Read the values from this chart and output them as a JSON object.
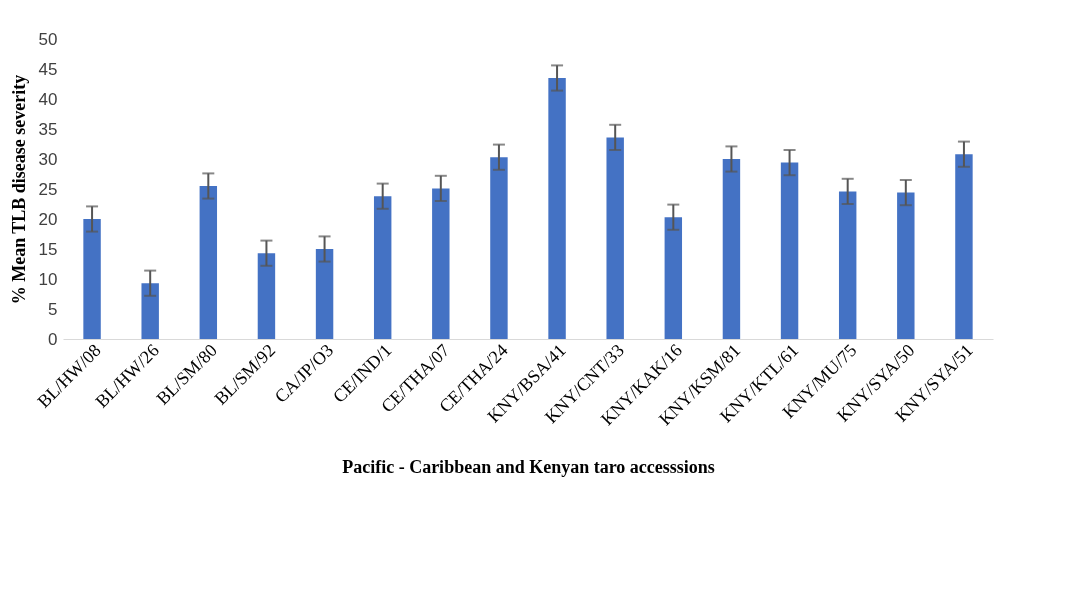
{
  "chart_data": {
    "type": "bar",
    "xlabel": "Pacific - Caribbean and Kenyan taro accesssions",
    "ylabel": "% Mean TLB disease severity",
    "categories": [
      "BL/HW/08",
      "BL/HW/26",
      "BL/SM/80",
      "BL/SM/92",
      "CA/JP/O3",
      "CE/IND/1",
      "CE/THA/07",
      "CE/THA/24",
      "KNY/BSA/41",
      "KNY/CNT/33",
      "KNY/KAK/16",
      "KNY/KSM/81",
      "KNY/KTL/61",
      "KNY/MU/75",
      "KNY/SYA/50",
      "KNY/SYA/51"
    ],
    "values": [
      20,
      9.3,
      25.5,
      14.3,
      15,
      23.8,
      25.1,
      30.3,
      43.5,
      33.6,
      20.3,
      30,
      29.4,
      24.6,
      24.4,
      30.8
    ],
    "errors": [
      2.1,
      2.1,
      2.1,
      2.1,
      2.1,
      2.1,
      2.1,
      2.1,
      2.1,
      2.1,
      2.1,
      2.1,
      2.1,
      2.1,
      2.1,
      2.1
    ],
    "color": "#4472c4",
    "ylim": [
      0,
      50
    ],
    "yticks": [
      0,
      5,
      10,
      15,
      20,
      25,
      30,
      35,
      40,
      45,
      50
    ],
    "grid": false
  }
}
